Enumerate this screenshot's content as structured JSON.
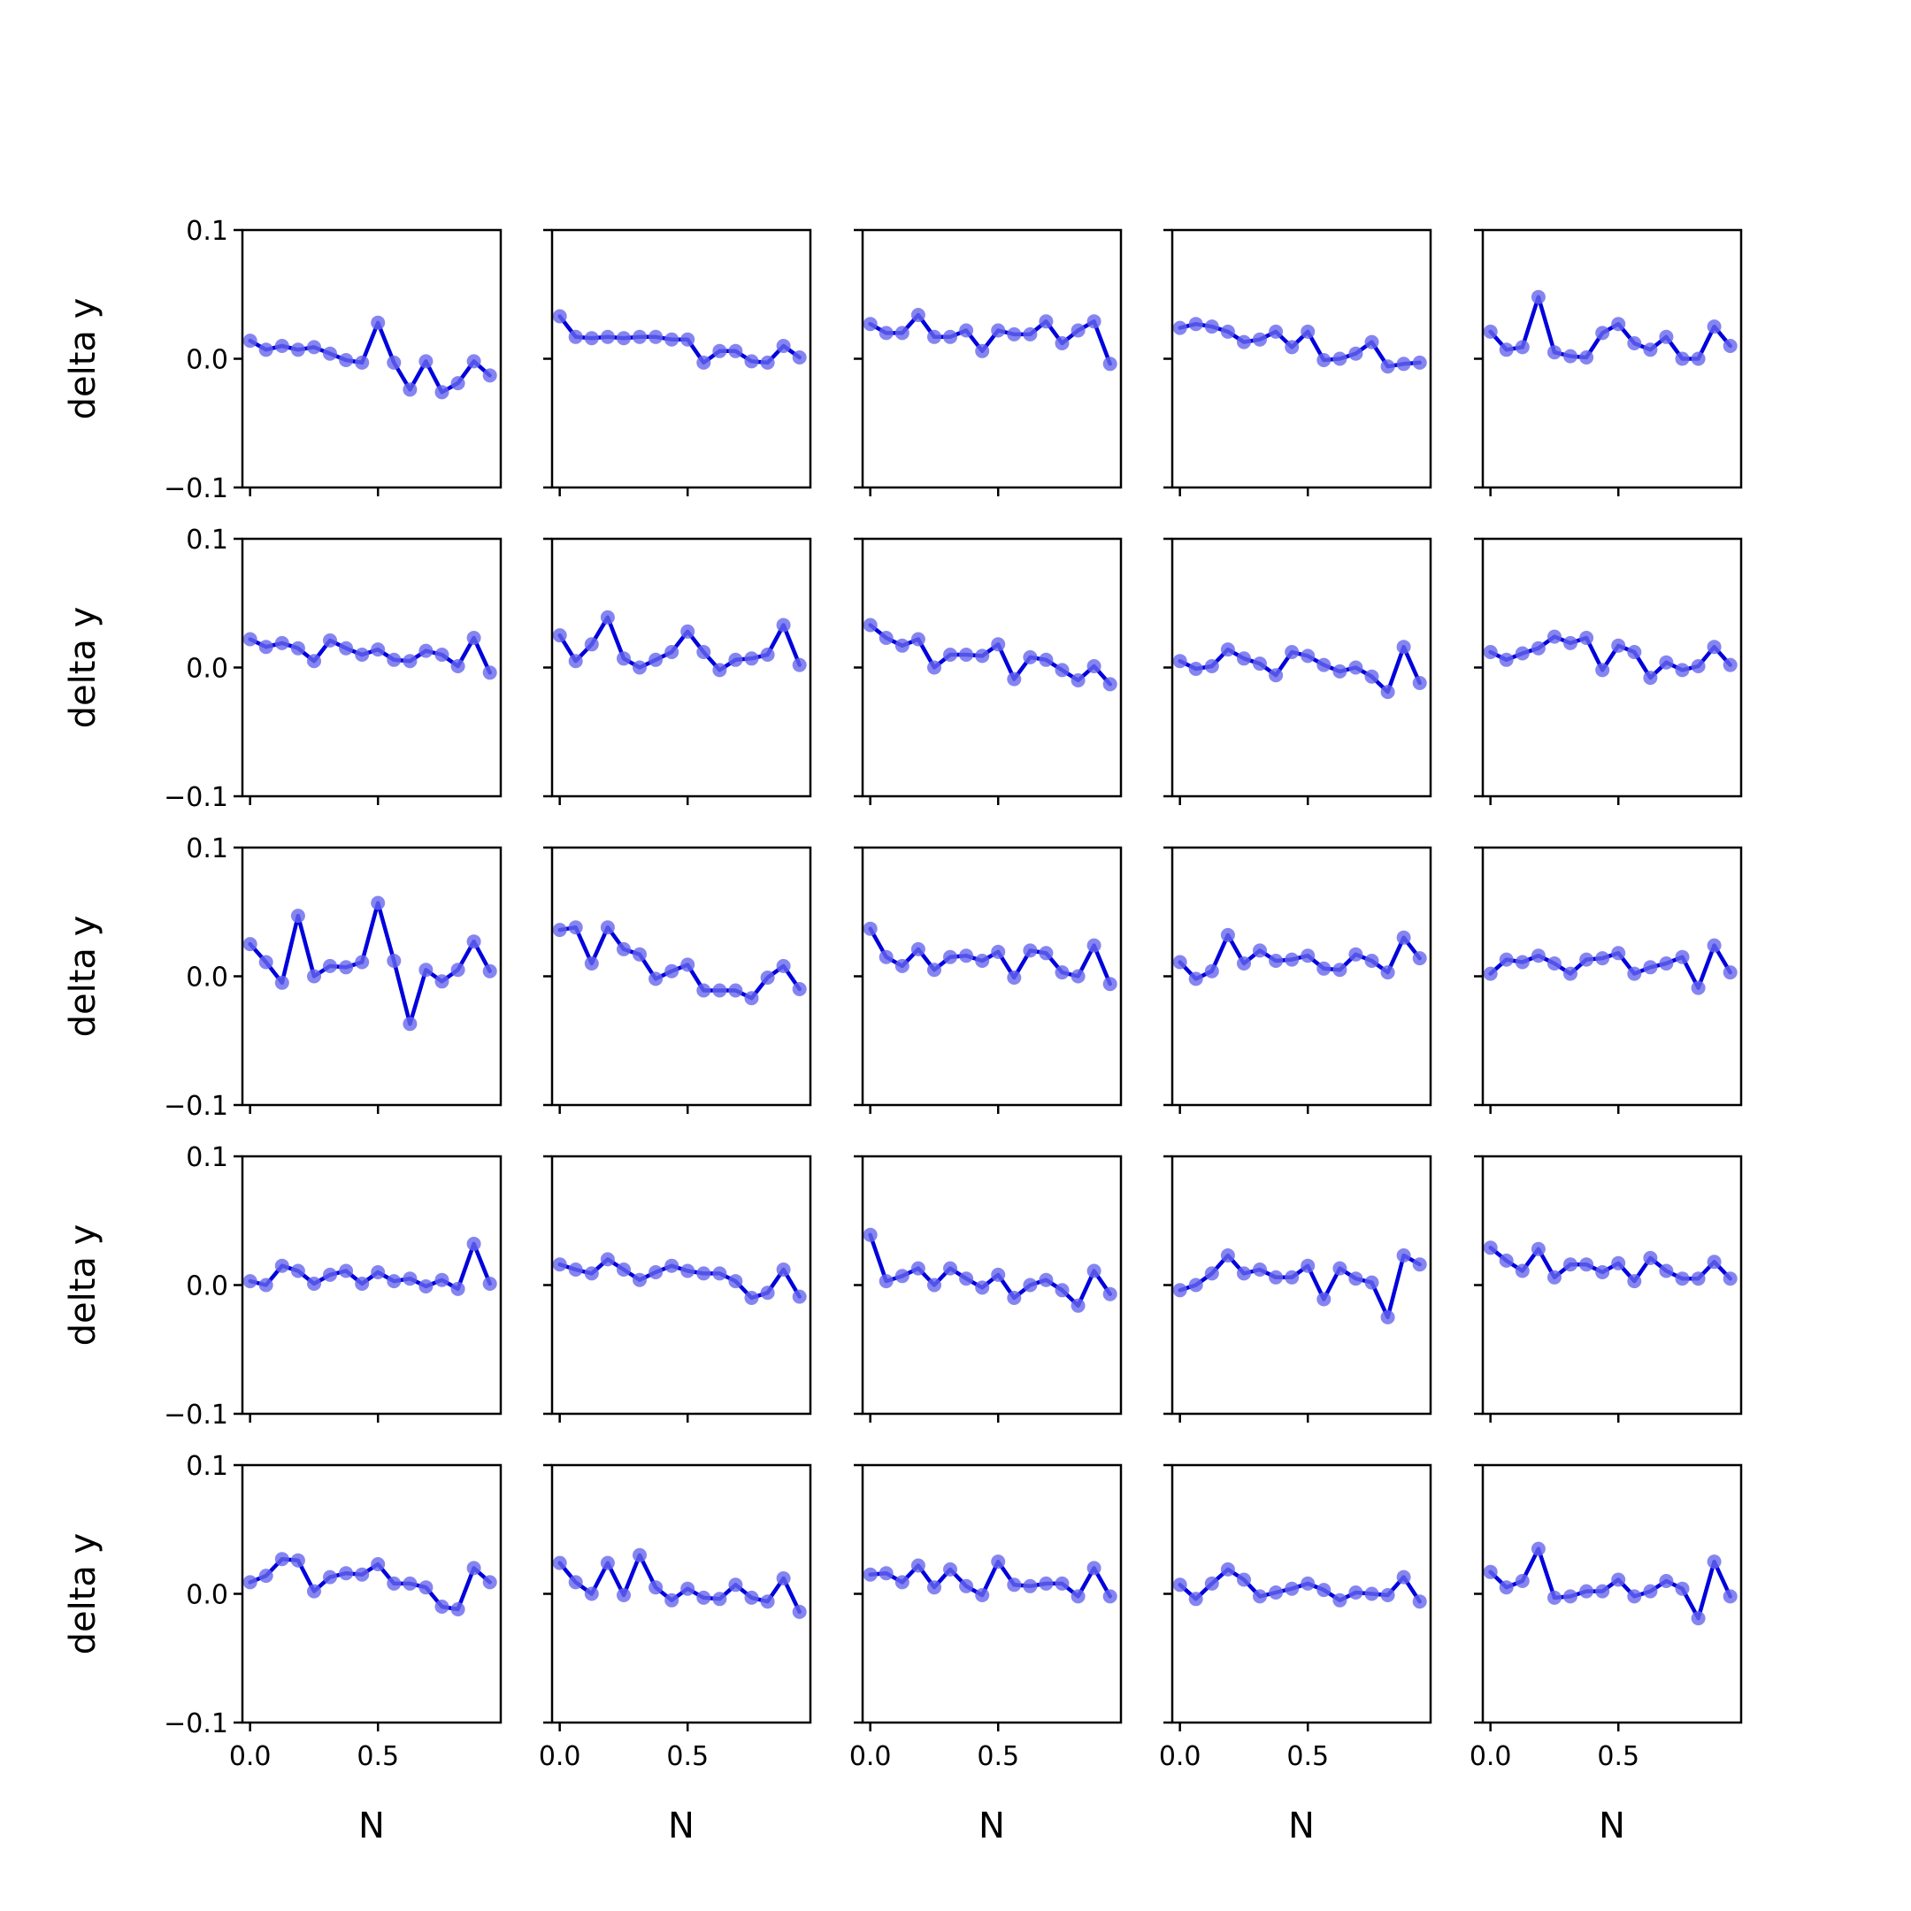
{
  "chart_data": {
    "type": "line",
    "layout": "grid-5x5",
    "xlabel": "N",
    "ylabel": "delta y",
    "xlim": [
      -0.03,
      0.98
    ],
    "ylim": [
      -0.1,
      0.1
    ],
    "x_ticks": [
      0.0,
      0.5
    ],
    "x_tick_labels": [
      "0.0",
      "0.5"
    ],
    "y_ticks": [
      -0.1,
      0.0,
      0.1
    ],
    "y_tick_labels": [
      "−0.1",
      "0.0",
      "0.1"
    ],
    "grid": false,
    "line_color": "#0000dd",
    "marker_color": "#6666ee",
    "x": [
      0.0,
      0.0625,
      0.125,
      0.1875,
      0.25,
      0.3125,
      0.375,
      0.4375,
      0.5,
      0.5625,
      0.625,
      0.6875,
      0.75,
      0.8125,
      0.875,
      0.9375
    ],
    "panels": [
      {
        "values": [
          0.014,
          0.007,
          0.01,
          0.007,
          0.009,
          0.004,
          -0.001,
          -0.003,
          0.028,
          -0.003,
          -0.024,
          -0.002,
          -0.026,
          -0.019,
          -0.002,
          -0.013
        ]
      },
      {
        "values": [
          0.033,
          0.017,
          0.016,
          0.017,
          0.016,
          0.017,
          0.017,
          0.015,
          0.015,
          -0.003,
          0.006,
          0.006,
          -0.002,
          -0.003,
          0.01,
          0.001
        ]
      },
      {
        "values": [
          0.027,
          0.02,
          0.02,
          0.034,
          0.017,
          0.017,
          0.022,
          0.006,
          0.022,
          0.019,
          0.019,
          0.029,
          0.012,
          0.022,
          0.029,
          -0.004
        ]
      },
      {
        "values": [
          0.024,
          0.027,
          0.025,
          0.021,
          0.013,
          0.015,
          0.021,
          0.009,
          0.021,
          -0.001,
          0.0,
          0.004,
          0.013,
          -0.006,
          -0.004,
          -0.003
        ]
      },
      {
        "values": [
          0.021,
          0.007,
          0.009,
          0.048,
          0.005,
          0.002,
          0.001,
          0.02,
          0.027,
          0.012,
          0.007,
          0.017,
          0.0,
          0.0,
          0.025,
          0.01
        ]
      },
      {
        "values": [
          0.022,
          0.016,
          0.019,
          0.015,
          0.005,
          0.021,
          0.015,
          0.01,
          0.014,
          0.006,
          0.005,
          0.013,
          0.01,
          0.001,
          0.023,
          -0.004
        ]
      },
      {
        "values": [
          0.025,
          0.005,
          0.018,
          0.039,
          0.007,
          0.0,
          0.006,
          0.012,
          0.028,
          0.012,
          -0.002,
          0.006,
          0.007,
          0.01,
          0.033,
          0.002
        ]
      },
      {
        "values": [
          0.033,
          0.023,
          0.017,
          0.022,
          0.0,
          0.01,
          0.01,
          0.009,
          0.018,
          -0.009,
          0.008,
          0.006,
          -0.002,
          -0.01,
          0.001,
          -0.013
        ]
      },
      {
        "values": [
          0.005,
          -0.001,
          0.001,
          0.014,
          0.007,
          0.003,
          -0.006,
          0.012,
          0.009,
          0.002,
          -0.003,
          0.0,
          -0.007,
          -0.019,
          0.016,
          -0.012
        ]
      },
      {
        "values": [
          0.012,
          0.006,
          0.011,
          0.015,
          0.024,
          0.019,
          0.023,
          -0.002,
          0.017,
          0.012,
          -0.008,
          0.004,
          -0.002,
          0.001,
          0.016,
          0.002
        ]
      },
      {
        "values": [
          0.025,
          0.011,
          -0.005,
          0.047,
          0.0,
          0.008,
          0.007,
          0.011,
          0.057,
          0.012,
          -0.037,
          0.005,
          -0.004,
          0.005,
          0.027,
          0.004
        ]
      },
      {
        "values": [
          0.036,
          0.038,
          0.01,
          0.038,
          0.021,
          0.017,
          -0.002,
          0.004,
          0.009,
          -0.011,
          -0.011,
          -0.011,
          -0.017,
          -0.001,
          0.008,
          -0.01
        ]
      },
      {
        "values": [
          0.037,
          0.015,
          0.008,
          0.021,
          0.005,
          0.015,
          0.016,
          0.012,
          0.019,
          -0.001,
          0.02,
          0.018,
          0.003,
          0.0,
          0.024,
          -0.006
        ]
      },
      {
        "values": [
          0.011,
          -0.002,
          0.004,
          0.032,
          0.01,
          0.02,
          0.012,
          0.013,
          0.016,
          0.006,
          0.005,
          0.017,
          0.012,
          0.003,
          0.03,
          0.014
        ]
      },
      {
        "values": [
          0.002,
          0.013,
          0.011,
          0.016,
          0.01,
          0.002,
          0.013,
          0.014,
          0.018,
          0.002,
          0.007,
          0.01,
          0.015,
          -0.009,
          0.024,
          0.003
        ]
      },
      {
        "values": [
          0.003,
          0.0,
          0.015,
          0.011,
          0.001,
          0.008,
          0.011,
          0.001,
          0.01,
          0.003,
          0.005,
          -0.001,
          0.004,
          -0.003,
          0.032,
          0.001
        ]
      },
      {
        "values": [
          0.016,
          0.012,
          0.009,
          0.02,
          0.012,
          0.004,
          0.01,
          0.015,
          0.011,
          0.009,
          0.009,
          0.003,
          -0.01,
          -0.006,
          0.012,
          -0.009
        ]
      },
      {
        "values": [
          0.039,
          0.003,
          0.007,
          0.013,
          0.0,
          0.013,
          0.005,
          -0.002,
          0.008,
          -0.01,
          0.0,
          0.004,
          -0.004,
          -0.016,
          0.011,
          -0.007
        ]
      },
      {
        "values": [
          -0.004,
          0.0,
          0.009,
          0.023,
          0.009,
          0.012,
          0.006,
          0.006,
          0.015,
          -0.011,
          0.013,
          0.005,
          0.002,
          -0.025,
          0.023,
          0.016
        ]
      },
      {
        "values": [
          0.029,
          0.019,
          0.011,
          0.028,
          0.006,
          0.016,
          0.016,
          0.01,
          0.017,
          0.003,
          0.021,
          0.011,
          0.005,
          0.005,
          0.018,
          0.005
        ]
      },
      {
        "values": [
          0.009,
          0.014,
          0.027,
          0.026,
          0.002,
          0.013,
          0.016,
          0.015,
          0.023,
          0.008,
          0.008,
          0.005,
          -0.01,
          -0.012,
          0.02,
          0.009
        ]
      },
      {
        "values": [
          0.024,
          0.009,
          0.0,
          0.024,
          -0.001,
          0.03,
          0.005,
          -0.005,
          0.004,
          -0.003,
          -0.004,
          0.007,
          -0.003,
          -0.006,
          0.012,
          -0.014
        ]
      },
      {
        "values": [
          0.015,
          0.016,
          0.009,
          0.022,
          0.005,
          0.019,
          0.006,
          -0.001,
          0.025,
          0.007,
          0.006,
          0.008,
          0.008,
          -0.002,
          0.02,
          -0.002
        ]
      },
      {
        "values": [
          0.007,
          -0.004,
          0.008,
          0.019,
          0.011,
          -0.002,
          0.001,
          0.004,
          0.008,
          0.003,
          -0.005,
          0.001,
          0.0,
          -0.001,
          0.013,
          -0.006
        ]
      },
      {
        "values": [
          0.017,
          0.005,
          0.01,
          0.035,
          -0.003,
          -0.002,
          0.002,
          0.002,
          0.011,
          -0.002,
          0.002,
          0.01,
          0.004,
          -0.019,
          0.025,
          -0.002
        ]
      }
    ]
  }
}
